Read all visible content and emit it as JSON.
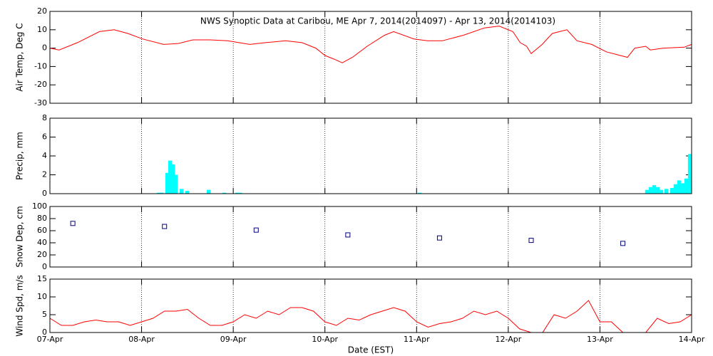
{
  "chart_data": [
    {
      "type": "line",
      "title": "NWS Synoptic Data at Caribou, ME   Apr  7, 2014(2014097) - Apr 13, 2014(2014103)",
      "ylabel": "Air Temp, Deg C",
      "color": "#ff0000",
      "grid": true,
      "x": [
        0,
        0.1,
        0.3,
        0.54,
        0.7,
        0.85,
        1.01,
        1.24,
        1.4,
        1.56,
        1.75,
        1.94,
        2.18,
        2.35,
        2.57,
        2.75,
        2.9,
        3.0,
        3.1,
        3.19,
        3.3,
        3.46,
        3.65,
        3.75,
        3.97,
        4.12,
        4.28,
        4.51,
        4.74,
        4.9,
        5.05,
        5.13,
        5.2,
        5.25,
        5.37,
        5.48,
        5.64,
        5.75,
        5.91,
        6.07,
        6.22,
        6.3,
        6.38,
        6.5,
        6.55,
        6.69,
        6.92,
        7.0
      ],
      "values": [
        0,
        -1,
        3,
        9,
        10,
        8,
        5,
        2,
        2.5,
        4.5,
        4.5,
        4,
        2,
        3,
        4,
        3,
        0,
        -4,
        -6,
        -8,
        -5,
        1,
        7,
        9,
        5,
        4,
        4,
        7,
        11,
        12,
        9,
        3,
        1,
        -3,
        2,
        8,
        10,
        4,
        2,
        -2,
        -4,
        -5,
        0,
        1,
        -1,
        0,
        0.5,
        2
      ],
      "xlim": [
        0,
        7
      ],
      "xticks": [
        0,
        1,
        2,
        3,
        4,
        5,
        6,
        7
      ],
      "ylim": [
        -30,
        20
      ],
      "yticks": [
        -30,
        -20,
        -10,
        0,
        10,
        20
      ]
    },
    {
      "type": "bar",
      "ylabel": "Precip, mm",
      "color": "#00ffff",
      "grid": true,
      "x": [
        1.166,
        1.197,
        1.259,
        1.29,
        1.322,
        1.353,
        1.415,
        1.477,
        1.711,
        1.882,
        2.022,
        2.053,
        4.012,
        6.493,
        6.532,
        6.571,
        6.61,
        6.649,
        6.703,
        6.765,
        6.804,
        6.843,
        6.882,
        6.921,
        6.96
      ],
      "values": [
        0.1,
        0.1,
        2.2,
        3.5,
        3.1,
        2.0,
        0.5,
        0.3,
        0.4,
        0.1,
        0.1,
        0.1,
        0.1,
        0.4,
        0.7,
        0.9,
        0.7,
        0.4,
        0.5,
        0.6,
        1.0,
        1.4,
        1.1,
        1.6,
        4.2
      ],
      "xlim": [
        0,
        7
      ],
      "xticks": [
        0,
        1,
        2,
        3,
        4,
        5,
        6,
        7
      ],
      "ylim": [
        0,
        8
      ],
      "yticks": [
        0,
        2,
        4,
        6,
        8
      ]
    },
    {
      "type": "scatter",
      "ylabel": "Snow Dep, cm",
      "color": "#000080",
      "grid": true,
      "x": [
        0.25,
        1.25,
        2.25,
        3.25,
        4.25,
        5.25,
        6.25
      ],
      "values": [
        72,
        67,
        61,
        53,
        48,
        44,
        39
      ],
      "xlim": [
        0,
        7
      ],
      "xticks": [
        0,
        1,
        2,
        3,
        4,
        5,
        6,
        7
      ],
      "ylim": [
        0,
        100
      ],
      "yticks": [
        0,
        20,
        40,
        60,
        80,
        100
      ]
    },
    {
      "type": "line",
      "ylabel": "Wind Spd, m/s",
      "xlabel": "Date (EST)",
      "color": "#ff0000",
      "grid": true,
      "x": [
        0,
        0.125,
        0.25,
        0.375,
        0.5,
        0.625,
        0.75,
        0.875,
        1.0,
        1.125,
        1.25,
        1.375,
        1.5,
        1.625,
        1.75,
        1.875,
        2.0,
        2.125,
        2.25,
        2.375,
        2.5,
        2.625,
        2.75,
        2.875,
        3.0,
        3.125,
        3.25,
        3.375,
        3.5,
        3.625,
        3.75,
        3.875,
        4.0,
        4.125,
        4.25,
        4.375,
        4.5,
        4.625,
        4.75,
        4.875,
        5.0,
        5.125,
        5.25,
        5.375,
        5.5,
        5.625,
        5.75,
        5.875,
        6.0,
        6.125,
        6.25,
        6.375,
        6.5,
        6.625,
        6.75,
        6.875,
        7.0
      ],
      "values": [
        4,
        2,
        2,
        3,
        3.5,
        3,
        3,
        2,
        3,
        4,
        6,
        6,
        6.5,
        4,
        2,
        2,
        3,
        5,
        4,
        6,
        5,
        7,
        7,
        6,
        3,
        2,
        4,
        3.5,
        5,
        6,
        7,
        6,
        3,
        1.5,
        2.5,
        3,
        4,
        6,
        5,
        6,
        4,
        1,
        0,
        0,
        5,
        4,
        6,
        9,
        3,
        3,
        0,
        0,
        0,
        4,
        2.5,
        3,
        5
      ],
      "xlim": [
        0,
        7
      ],
      "xticks": [
        {
          "value": 0,
          "label": "07-Apr"
        },
        {
          "value": 1,
          "label": "08-Apr"
        },
        {
          "value": 2,
          "label": "09-Apr"
        },
        {
          "value": 3,
          "label": "10-Apr"
        },
        {
          "value": 4,
          "label": "11-Apr"
        },
        {
          "value": 5,
          "label": "12-Apr"
        },
        {
          "value": 6,
          "label": "13-Apr"
        },
        {
          "value": 7,
          "label": "14-Apr"
        }
      ],
      "ylim": [
        0,
        15
      ],
      "yticks": [
        0,
        5,
        10,
        15
      ]
    }
  ]
}
